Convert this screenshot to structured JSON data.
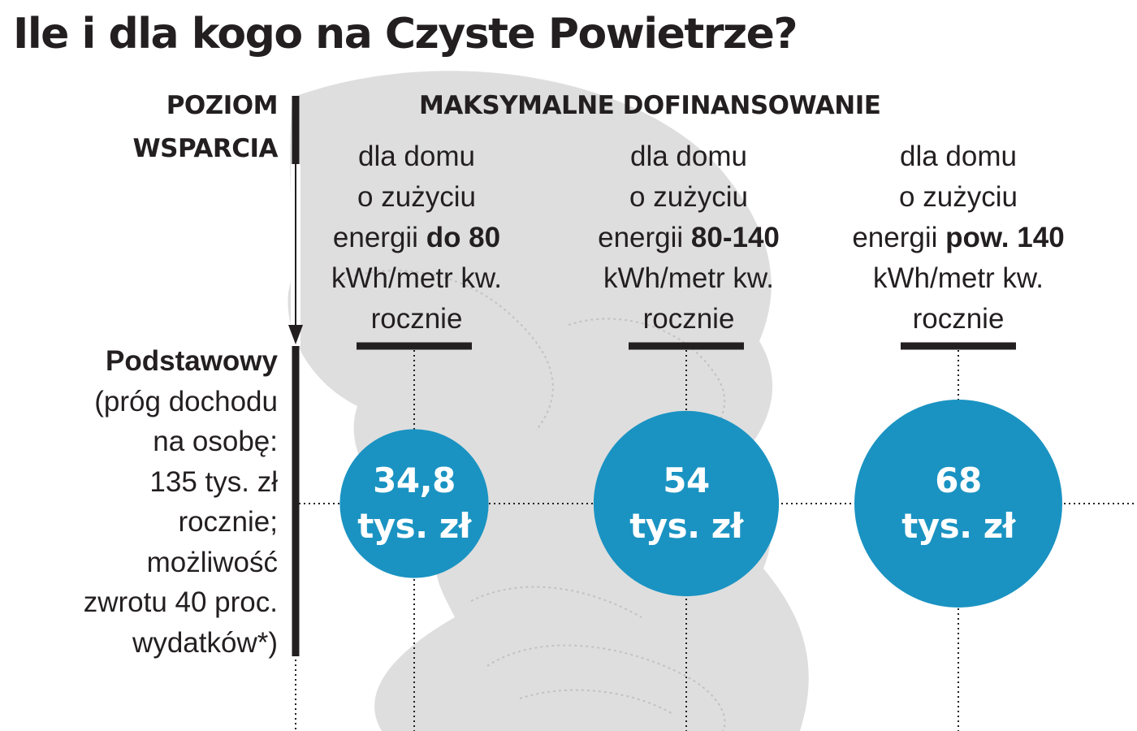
{
  "title": "Ile i dla kogo na Czyste Powietrze?",
  "level_header": [
    "POZIOM",
    "WSPARCIA"
  ],
  "max_header": "MAKSYMALNE DOFINANSOWANIE",
  "columns": [
    {
      "line1": "dla domu",
      "line2": "o zużyciu",
      "line3_prefix": "energii ",
      "line3_bold": "do 80",
      "line4": "kWh/metr kw.",
      "line5": "rocznie"
    },
    {
      "line1": "dla domu",
      "line2": "o zużyciu",
      "line3_prefix": "energii ",
      "line3_bold": "80-140",
      "line4": "kWh/metr kw.",
      "line5": "rocznie"
    },
    {
      "line1": "dla domu",
      "line2": "o zużyciu",
      "line3_prefix": "energii ",
      "line3_bold": "pow. 140",
      "line4": "kWh/metr kw.",
      "line5": "rocznie"
    }
  ],
  "level": {
    "name": "Podstawowy",
    "lines": [
      "(próg dochodu",
      "na osobę:",
      "135 tys. zł",
      "rocznie;",
      "możliwość",
      "zwrotu 40 proc.",
      "wydatków*)"
    ]
  },
  "colors": {
    "bubble": "#1a93c2",
    "text": "#231f20",
    "map": "#d9d9d9",
    "map_contour": "#bdbdbd"
  },
  "chart_data": {
    "type": "bubble",
    "title": "Ile i dla kogo na Czyste Powietrze?",
    "x_categories": [
      "do 80 kWh/metr kw. rocznie",
      "80-140 kWh/metr kw. rocznie",
      "pow. 140 kWh/metr kw. rocznie"
    ],
    "y_categories": [
      "Podstawowy"
    ],
    "unit": "tys. zł",
    "series": [
      {
        "values": [
          34.8,
          54,
          68
        ],
        "labels": [
          [
            "34,8",
            "tys. zł"
          ],
          [
            "54",
            "tys. zł"
          ],
          [
            "68",
            "tys. zł"
          ]
        ]
      }
    ]
  }
}
